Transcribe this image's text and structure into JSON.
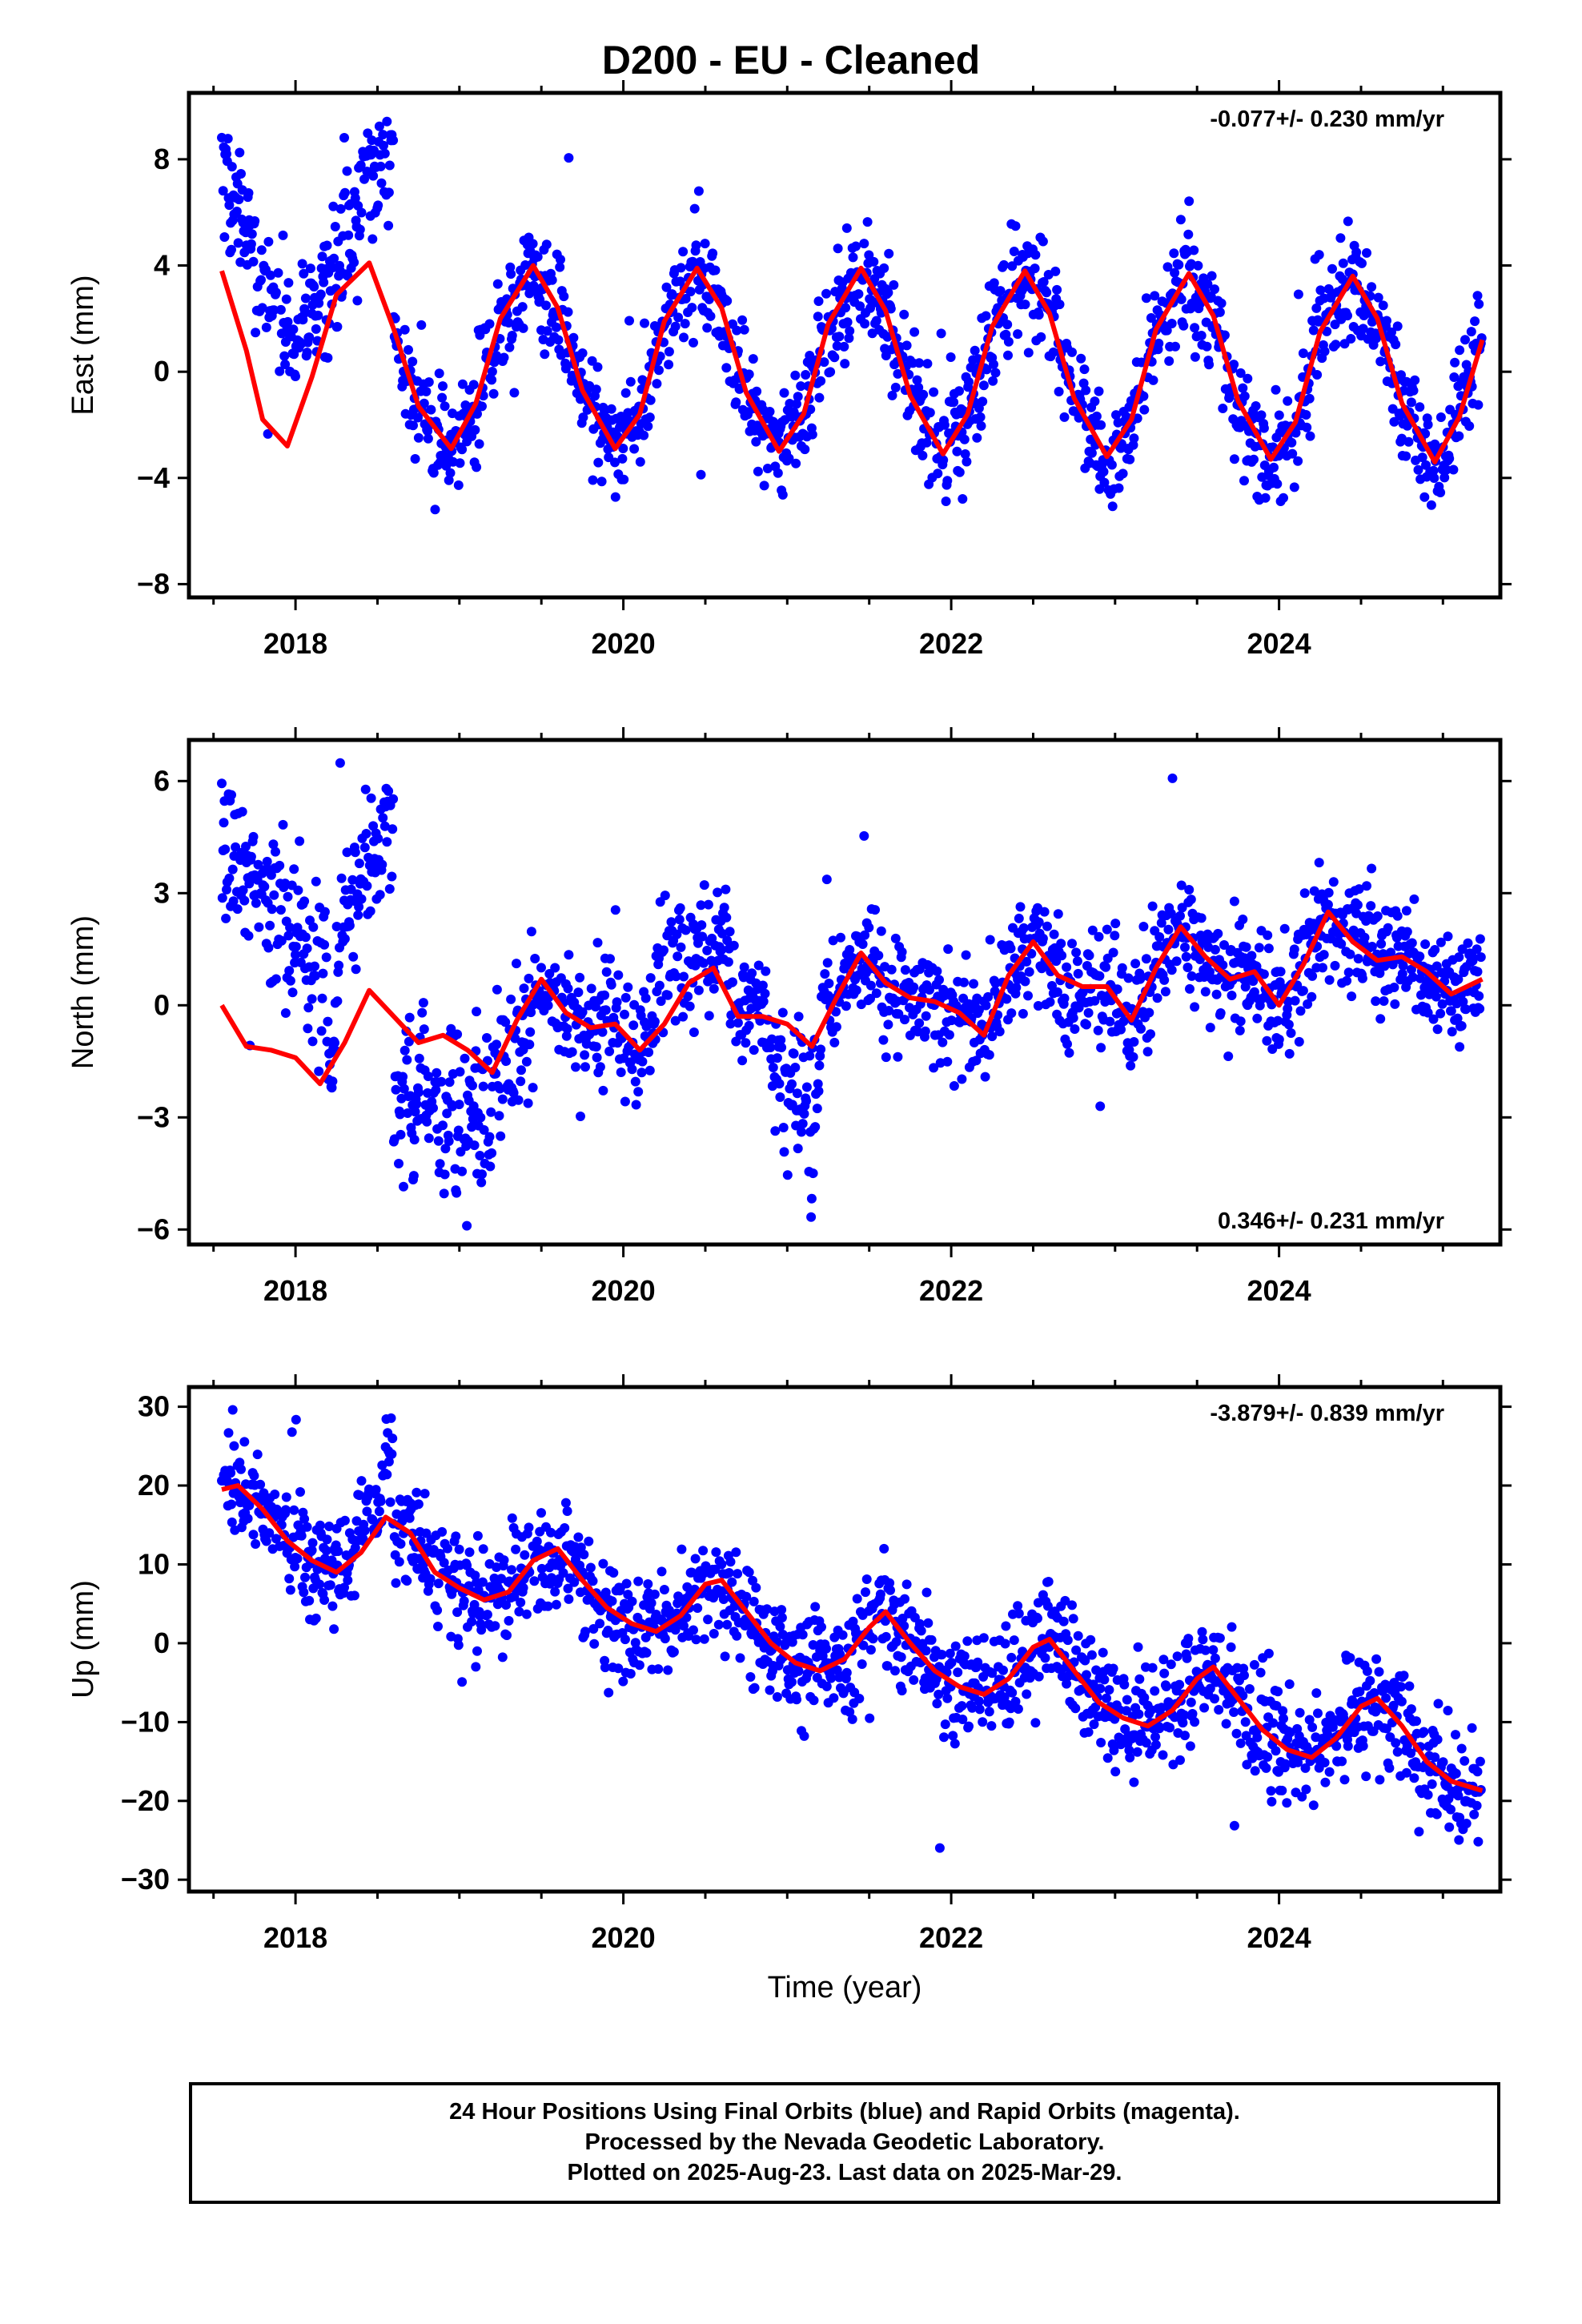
{
  "title": "D200  - EU - Cleaned",
  "xlabel": "Time (year)",
  "footer": {
    "line1": "24 Hour Positions Using Final Orbits (blue) and Rapid Orbits (magenta).",
    "line2": "Processed by the Nevada Geodetic Laboratory.",
    "line3": "Plotted on 2025-Aug-23. Last data on 2025-Mar-29."
  },
  "colors": {
    "data": "#0000ff",
    "model": "#ff0000",
    "frame": "#000000"
  },
  "chart_data": [
    {
      "type": "scatter",
      "name": "east",
      "ylabel": "East (mm)",
      "rate_text": "-0.077+/- 0.230 mm/yr",
      "rate_position": "top-right",
      "xlim": [
        2017.35,
        2025.35
      ],
      "ylim": [
        -8.5,
        10.5
      ],
      "x_ticks": [
        "2018",
        "2020",
        "2022",
        "2024"
      ],
      "y_ticks": [
        -8,
        -4,
        0,
        4,
        8
      ],
      "grid": false,
      "data_start": 2017.55,
      "data_end": 2025.24,
      "model": {
        "x": [
          2017.55,
          2017.7,
          2017.8,
          2017.95,
          2018.1,
          2018.25,
          2018.45,
          2018.6,
          2018.75,
          2018.95,
          2019.1,
          2019.25,
          2019.45,
          2019.6,
          2019.75,
          2019.95,
          2020.1,
          2020.25,
          2020.45,
          2020.6,
          2020.75,
          2020.95,
          2021.1,
          2021.25,
          2021.45,
          2021.6,
          2021.75,
          2021.95,
          2022.1,
          2022.25,
          2022.45,
          2022.6,
          2022.75,
          2022.95,
          2023.1,
          2023.25,
          2023.45,
          2023.6,
          2023.75,
          2023.95,
          2024.1,
          2024.25,
          2024.45,
          2024.6,
          2024.75,
          2024.95,
          2025.1,
          2025.24
        ],
        "y": [
          3.8,
          0.8,
          -1.8,
          -2.8,
          -0.2,
          2.9,
          4.1,
          1.6,
          -1.3,
          -2.9,
          -1.2,
          2.0,
          4.0,
          2.4,
          -0.7,
          -2.9,
          -1.6,
          1.9,
          3.9,
          2.4,
          -0.8,
          -3.0,
          -1.6,
          1.8,
          3.9,
          2.3,
          -0.9,
          -3.1,
          -1.6,
          1.7,
          3.8,
          2.2,
          -1.0,
          -3.2,
          -1.8,
          1.6,
          3.7,
          2.1,
          -1.1,
          -3.3,
          -1.9,
          1.5,
          3.6,
          2.0,
          -1.2,
          -3.4,
          -1.7,
          1.2
        ]
      },
      "clusters": [
        {
          "x0": 2017.55,
          "x1": 2017.75,
          "y0": 7.5,
          "y1": 4.5,
          "s": 1.2
        },
        {
          "x0": 2017.75,
          "x1": 2017.95,
          "y0": 4.5,
          "y1": 0.8,
          "s": 1.3
        },
        {
          "x0": 2017.95,
          "x1": 2018.15,
          "y0": 0.8,
          "y1": 2.5,
          "s": 1.3
        },
        {
          "x0": 2018.15,
          "x1": 2018.35,
          "y0": 2.5,
          "y1": 5.0,
          "s": 1.3
        },
        {
          "x0": 2018.35,
          "x1": 2018.6,
          "y0": 6.5,
          "y1": 7.8,
          "s": 1.3
        }
      ]
    },
    {
      "type": "scatter",
      "name": "north",
      "ylabel": "North (mm)",
      "rate_text": "0.346+/- 0.231 mm/yr",
      "rate_position": "bottom-right",
      "xlim": [
        2017.35,
        2025.35
      ],
      "ylim": [
        -6.4,
        7.1
      ],
      "x_ticks": [
        "2018",
        "2020",
        "2022",
        "2024"
      ],
      "y_ticks": [
        -6,
        -3,
        0,
        3,
        6
      ],
      "grid": false,
      "data_start": 2017.55,
      "data_end": 2025.24,
      "model": {
        "x": [
          2017.55,
          2017.7,
          2017.85,
          2018.0,
          2018.15,
          2018.3,
          2018.45,
          2018.6,
          2018.75,
          2018.9,
          2019.05,
          2019.2,
          2019.35,
          2019.5,
          2019.65,
          2019.8,
          2019.95,
          2020.1,
          2020.25,
          2020.4,
          2020.55,
          2020.7,
          2020.85,
          2021.0,
          2021.15,
          2021.3,
          2021.45,
          2021.6,
          2021.75,
          2021.9,
          2022.05,
          2022.2,
          2022.35,
          2022.5,
          2022.65,
          2022.8,
          2022.95,
          2023.1,
          2023.25,
          2023.4,
          2023.55,
          2023.7,
          2023.85,
          2024.0,
          2024.15,
          2024.3,
          2024.45,
          2024.6,
          2024.75,
          2024.9,
          2025.05,
          2025.24
        ],
        "y": [
          0.0,
          -1.1,
          -1.2,
          -1.4,
          -2.1,
          -1.0,
          0.4,
          -0.3,
          -1.0,
          -0.8,
          -1.2,
          -1.8,
          -0.4,
          0.7,
          -0.2,
          -0.6,
          -0.5,
          -1.2,
          -0.5,
          0.6,
          1.0,
          -0.3,
          -0.3,
          -0.5,
          -1.1,
          0.2,
          1.4,
          0.6,
          0.2,
          0.1,
          -0.2,
          -0.8,
          0.8,
          1.7,
          0.8,
          0.5,
          0.5,
          -0.4,
          1.0,
          2.1,
          1.3,
          0.7,
          0.9,
          0.0,
          1.1,
          2.5,
          1.7,
          1.2,
          1.3,
          0.9,
          0.3,
          0.7
        ]
      },
      "clusters": [
        {
          "x0": 2017.55,
          "x1": 2017.95,
          "y0": 3.8,
          "y1": 2.3,
          "s": 1.1
        },
        {
          "x0": 2017.95,
          "x1": 2018.2,
          "y0": 2.3,
          "y1": 0.6,
          "s": 1.1
        },
        {
          "x0": 2018.25,
          "x1": 2018.6,
          "y0": 2.0,
          "y1": 5.2,
          "s": 1.0
        },
        {
          "x0": 2018.6,
          "x1": 2019.2,
          "y0": -2.2,
          "y1": -3.2,
          "s": 1.2
        },
        {
          "x0": 2019.2,
          "x1": 2019.45,
          "y0": -2.0,
          "y1": -0.3,
          "s": 1.0
        },
        {
          "x0": 2020.2,
          "x1": 2020.65,
          "y0": 1.3,
          "y1": 1.6,
          "s": 0.9
        },
        {
          "x0": 2020.9,
          "x1": 2021.2,
          "y0": -1.8,
          "y1": -3.0,
          "s": 1.0
        }
      ]
    },
    {
      "type": "scatter",
      "name": "up",
      "ylabel": "Up (mm)",
      "rate_text": "-3.879+/- 0.839 mm/yr",
      "rate_position": "top-right",
      "xlim": [
        2017.35,
        2025.35
      ],
      "ylim": [
        -31.5,
        32.5
      ],
      "x_ticks": [
        "2018",
        "2020",
        "2022",
        "2024"
      ],
      "y_ticks": [
        -30,
        -20,
        -10,
        0,
        10,
        20,
        30
      ],
      "grid": false,
      "data_start": 2017.55,
      "data_end": 2025.24,
      "model": {
        "x": [
          2017.55,
          2017.65,
          2017.8,
          2017.95,
          2018.1,
          2018.25,
          2018.4,
          2018.55,
          2018.7,
          2018.85,
          2019.0,
          2019.15,
          2019.3,
          2019.45,
          2019.6,
          2019.75,
          2019.9,
          2020.05,
          2020.2,
          2020.35,
          2020.5,
          2020.6,
          2020.75,
          2020.9,
          2021.05,
          2021.2,
          2021.35,
          2021.5,
          2021.6,
          2021.75,
          2021.9,
          2022.05,
          2022.2,
          2022.35,
          2022.5,
          2022.6,
          2022.75,
          2022.9,
          2023.05,
          2023.2,
          2023.35,
          2023.5,
          2023.6,
          2023.75,
          2023.9,
          2024.05,
          2024.2,
          2024.35,
          2024.5,
          2024.6,
          2024.75,
          2024.9,
          2025.05,
          2025.24
        ],
        "y": [
          19.5,
          20.0,
          17.0,
          13.0,
          10.5,
          9.0,
          11.5,
          16.0,
          14.0,
          9.0,
          7.0,
          5.5,
          6.5,
          10.5,
          12.0,
          8.0,
          4.5,
          2.5,
          1.5,
          3.5,
          7.5,
          8.0,
          4.0,
          0.0,
          -2.5,
          -3.5,
          -2.0,
          2.0,
          4.0,
          0.0,
          -3.5,
          -5.5,
          -6.5,
          -4.5,
          -0.5,
          0.5,
          -3.5,
          -7.5,
          -9.5,
          -10.5,
          -8.5,
          -4.5,
          -3.0,
          -7.0,
          -11.0,
          -13.5,
          -14.5,
          -12.0,
          -8.0,
          -7.0,
          -10.5,
          -15.0,
          -17.5,
          -18.7
        ]
      },
      "clusters": [
        {
          "x0": 2017.55,
          "x1": 2017.75,
          "y0": 21.0,
          "y1": 17.0,
          "s": 3.5
        },
        {
          "x0": 2018.35,
          "x1": 2018.6,
          "y0": 14.0,
          "y1": 21.0,
          "s": 3.5
        }
      ]
    }
  ]
}
